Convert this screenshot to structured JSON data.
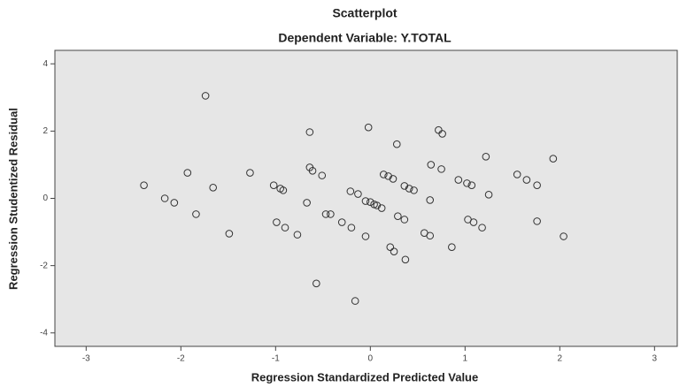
{
  "chart_data": {
    "type": "scatter",
    "title": "Scatterplot",
    "subtitle": "Dependent Variable: Y.TOTAL",
    "x_label": "Regression Standardized Predicted Value",
    "y_label": "Regression Studentized Residual",
    "xlim": [
      -3.33,
      3.24
    ],
    "ylim": [
      -4.4,
      4.4
    ],
    "xticks": [
      -3,
      -2,
      -1,
      0,
      1,
      2,
      3
    ],
    "yticks": [
      -4,
      -2,
      0,
      2,
      4
    ],
    "color": "#333333",
    "background": "#e6e6e6",
    "grid": false,
    "x": [
      -1.74,
      -2.39,
      -2.17,
      -2.07,
      -1.93,
      -1.84,
      -1.66,
      -1.49,
      -1.27,
      -1.02,
      -0.95,
      -0.92,
      -0.99,
      -0.9,
      -0.77,
      -0.67,
      -0.64,
      -0.64,
      -0.61,
      -0.51,
      -0.47,
      -0.42,
      -0.57,
      -0.3,
      -0.21,
      -0.2,
      -0.13,
      -0.16,
      -0.05,
      -0.05,
      -0.02,
      0,
      0.04,
      0.07,
      0.12,
      0.14,
      0.19,
      0.24,
      0.28,
      0.29,
      0.36,
      0.36,
      0.41,
      0.46,
      0.37,
      0.21,
      0.25,
      0.57,
      0.63,
      0.64,
      0.63,
      0.75,
      0.72,
      0.76,
      0.86,
      0.93,
      1.02,
      1.07,
      1.03,
      1.09,
      1.18,
      1.22,
      1.25,
      1.55,
      1.65,
      1.76,
      1.76,
      1.93,
      2.04
    ],
    "values": [
      3.05,
      0.39,
      0.0,
      -0.13,
      0.76,
      -0.47,
      0.32,
      -1.05,
      0.76,
      0.39,
      0.29,
      0.24,
      -0.71,
      -0.87,
      -1.08,
      -0.13,
      1.97,
      0.92,
      0.82,
      0.68,
      -0.47,
      -0.47,
      -2.53,
      -0.71,
      0.21,
      -0.87,
      0.13,
      -3.05,
      -0.08,
      -1.13,
      2.11,
      -0.11,
      -0.18,
      -0.21,
      -0.29,
      0.71,
      0.66,
      0.58,
      1.61,
      -0.53,
      0.37,
      -0.63,
      0.29,
      0.24,
      -1.82,
      -1.45,
      -1.58,
      -1.03,
      -0.05,
      1.0,
      -1.11,
      0.87,
      2.03,
      1.92,
      -1.45,
      0.55,
      0.45,
      0.39,
      -0.63,
      -0.71,
      -0.87,
      1.24,
      0.11,
      0.71,
      0.55,
      0.39,
      -0.68,
      1.18,
      -1.13
    ]
  }
}
